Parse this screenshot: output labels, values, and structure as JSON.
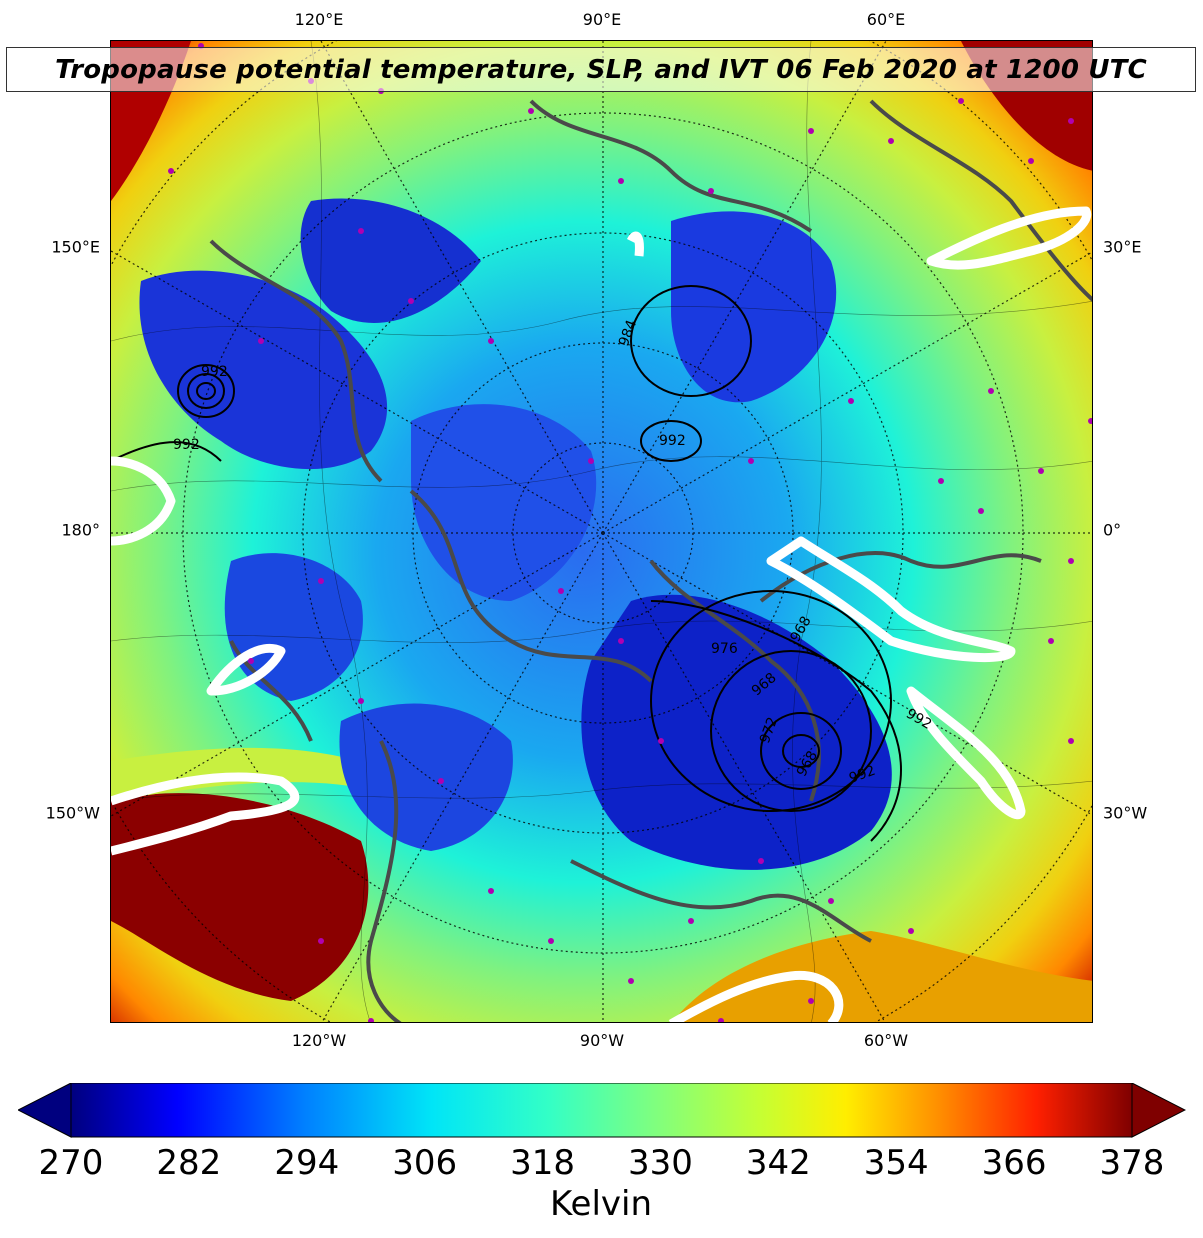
{
  "title": "Tropopause potential temperature, SLP, and IVT 06 Feb 2020 at 1200 UTC",
  "longitude_labels": {
    "top": [
      "120°E",
      "90°E",
      "60°E"
    ],
    "bottom": [
      "120°W",
      "90°W",
      "60°W"
    ],
    "left": [
      "150°E",
      "180°",
      "150°W"
    ],
    "right": [
      "30°E",
      "0°",
      "30°W"
    ]
  },
  "slp_contour_labels": [
    "992",
    "992",
    "984",
    "992",
    "976",
    "968",
    "972",
    "968",
    "992",
    "992",
    "968"
  ],
  "colorbar": {
    "label": "Kelvin",
    "ticks": [
      "270",
      "282",
      "294",
      "306",
      "318",
      "330",
      "342",
      "354",
      "366",
      "378"
    ],
    "min": 270,
    "max": 378,
    "colors": [
      "#00007f",
      "#0000ff",
      "#0080ff",
      "#00e5f7",
      "#33ffc6",
      "#7fff7f",
      "#c6ff33",
      "#ffee00",
      "#ff8c00",
      "#ff2000",
      "#7f0000"
    ]
  },
  "colors": {
    "polar_low": "#0a1fd6",
    "mid": "#1ef2d8",
    "warm": "#d8f020",
    "hot": "#7f0000",
    "ivt_contour": "#ffffff",
    "coastline": "#4a4a4a",
    "station_marker": "#b000b0"
  }
}
